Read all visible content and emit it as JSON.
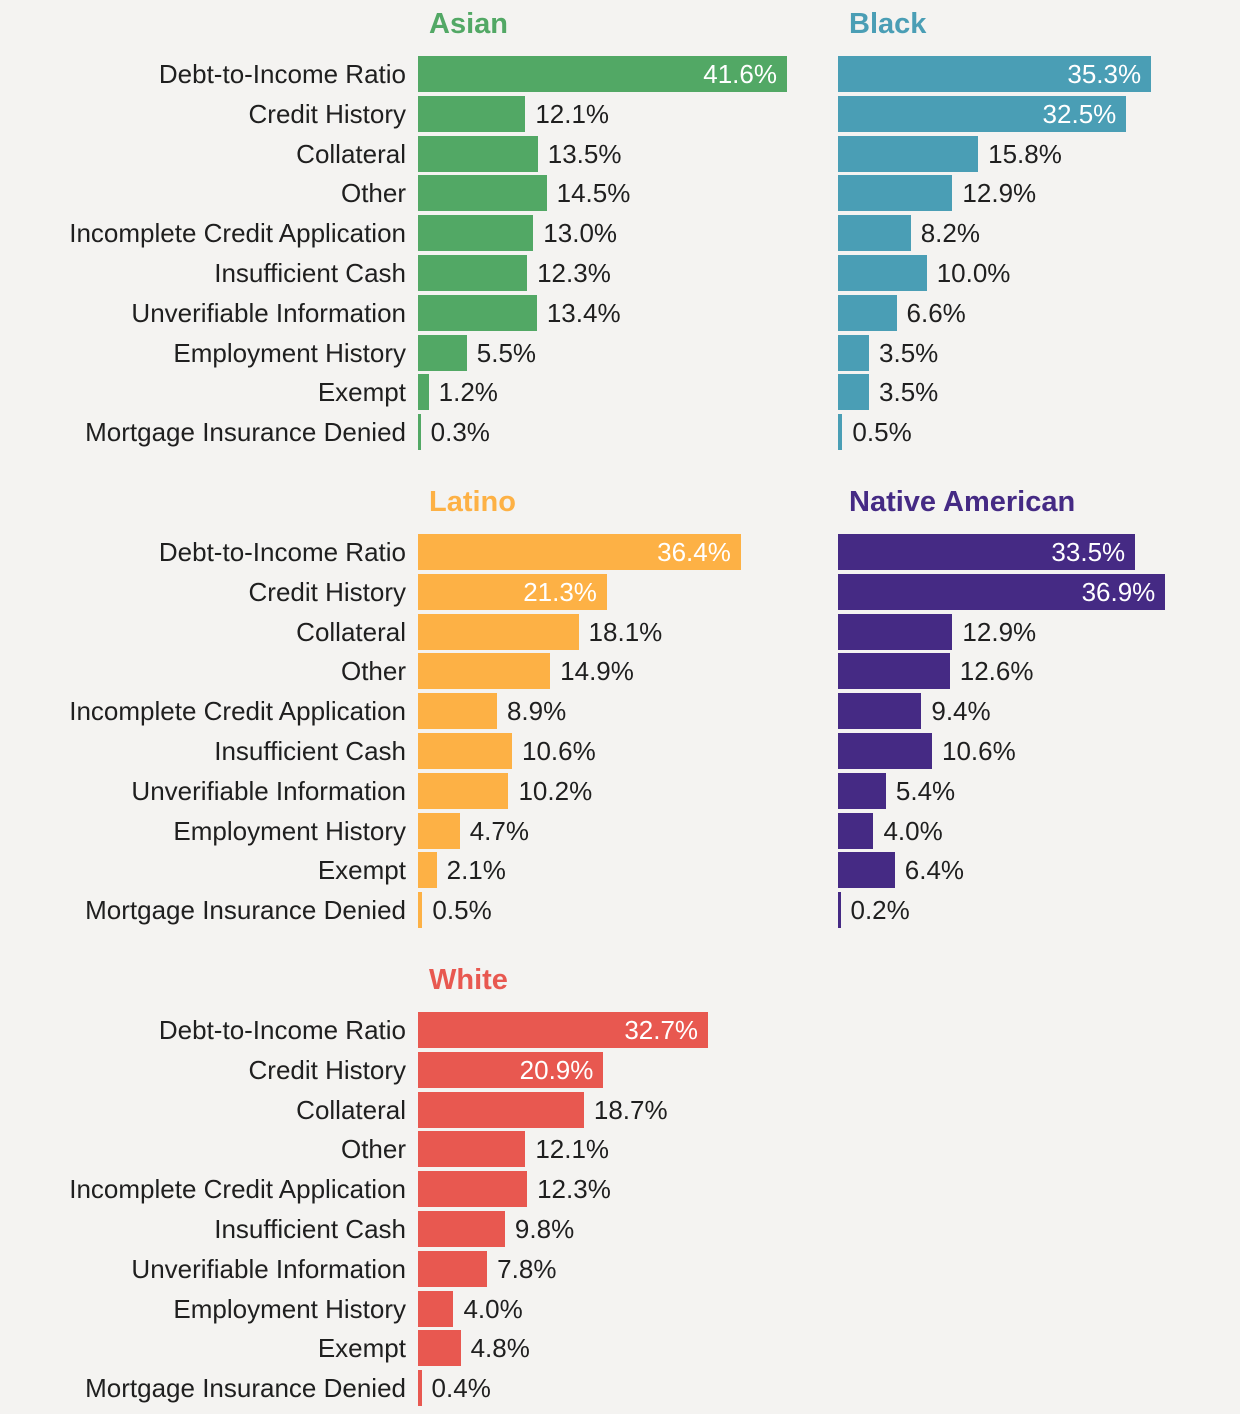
{
  "chart_data": [
    {
      "type": "bar",
      "orientation": "horizontal",
      "title": "Asian",
      "color": "#52a865",
      "categories": [
        "Debt-to-Income Ratio",
        "Credit History",
        "Collateral",
        "Other",
        "Incomplete Credit Application",
        "Insufficient Cash",
        "Unverifiable Information",
        "Employment History",
        "Exempt",
        "Mortgage Insurance Denied"
      ],
      "values": [
        41.6,
        12.1,
        13.5,
        14.5,
        13.0,
        12.3,
        13.4,
        5.5,
        1.2,
        0.3
      ],
      "labels": [
        "41.6%",
        "12.1%",
        "13.5%",
        "14.5%",
        "13.0%",
        "12.3%",
        "13.4%",
        "5.5%",
        "1.2%",
        "0.3%"
      ]
    },
    {
      "type": "bar",
      "orientation": "horizontal",
      "title": "Black",
      "color": "#4a9eb5",
      "categories": [
        "Debt-to-Income Ratio",
        "Credit History",
        "Collateral",
        "Other",
        "Incomplete Credit Application",
        "Insufficient Cash",
        "Unverifiable Information",
        "Employment History",
        "Exempt",
        "Mortgage Insurance Denied"
      ],
      "values": [
        35.3,
        32.5,
        15.8,
        12.9,
        8.2,
        10.0,
        6.6,
        3.5,
        3.5,
        0.5
      ],
      "labels": [
        "35.3%",
        "32.5%",
        "15.8%",
        "12.9%",
        "8.2%",
        "10.0%",
        "6.6%",
        "3.5%",
        "3.5%",
        "0.5%"
      ]
    },
    {
      "type": "bar",
      "orientation": "horizontal",
      "title": "Latino",
      "color": "#fdb145",
      "categories": [
        "Debt-to-Income Ratio",
        "Credit History",
        "Collateral",
        "Other",
        "Incomplete Credit Application",
        "Insufficient Cash",
        "Unverifiable Information",
        "Employment History",
        "Exempt",
        "Mortgage Insurance Denied"
      ],
      "values": [
        36.4,
        21.3,
        18.1,
        14.9,
        8.9,
        10.6,
        10.2,
        4.7,
        2.1,
        0.5
      ],
      "labels": [
        "36.4%",
        "21.3%",
        "18.1%",
        "14.9%",
        "8.9%",
        "10.6%",
        "10.2%",
        "4.7%",
        "2.1%",
        "0.5%"
      ]
    },
    {
      "type": "bar",
      "orientation": "horizontal",
      "title": "Native American",
      "color": "#452a84",
      "categories": [
        "Debt-to-Income Ratio",
        "Credit History",
        "Collateral",
        "Other",
        "Incomplete Credit Application",
        "Insufficient Cash",
        "Unverifiable Information",
        "Employment History",
        "Exempt",
        "Mortgage Insurance Denied"
      ],
      "values": [
        33.5,
        36.9,
        12.9,
        12.6,
        9.4,
        10.6,
        5.4,
        4.0,
        6.4,
        0.2
      ],
      "labels": [
        "33.5%",
        "36.9%",
        "12.9%",
        "12.6%",
        "9.4%",
        "10.6%",
        "5.4%",
        "4.0%",
        "6.4%",
        "0.2%"
      ]
    },
    {
      "type": "bar",
      "orientation": "horizontal",
      "title": "White",
      "color": "#e85850",
      "categories": [
        "Debt-to-Income Ratio",
        "Credit History",
        "Collateral",
        "Other",
        "Incomplete Credit Application",
        "Insufficient Cash",
        "Unverifiable Information",
        "Employment History",
        "Exempt",
        "Mortgage Insurance Denied"
      ],
      "values": [
        32.7,
        20.9,
        18.7,
        12.1,
        12.3,
        9.8,
        7.8,
        4.0,
        4.8,
        0.4
      ],
      "labels": [
        "32.7%",
        "20.9%",
        "18.7%",
        "12.1%",
        "12.3%",
        "9.8%",
        "7.8%",
        "4.0%",
        "4.8%",
        "0.4%"
      ]
    }
  ]
}
